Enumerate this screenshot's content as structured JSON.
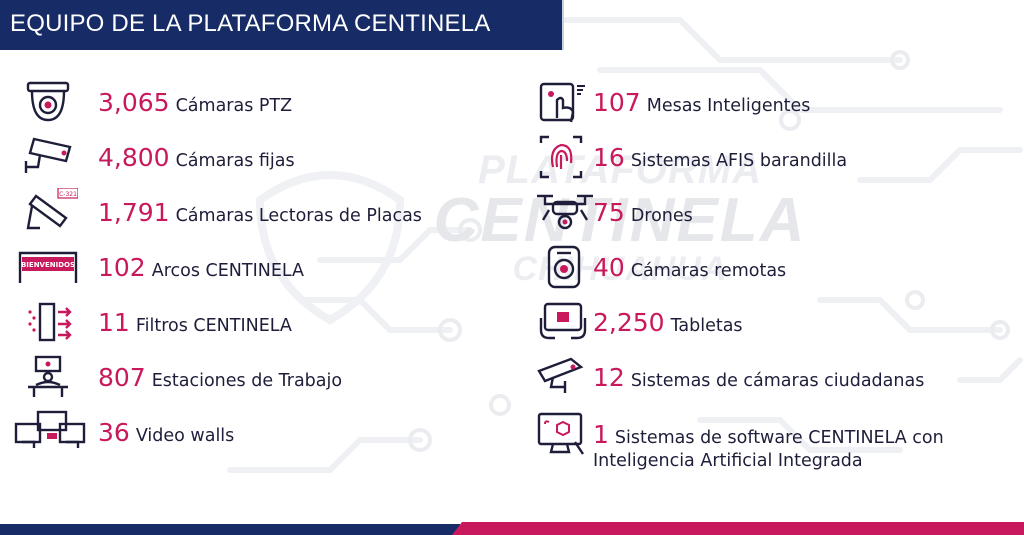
{
  "header": {
    "title": "EQUIPO DE LA PLATAFORMA CENTINELA"
  },
  "watermark": {
    "line1": "PLATAFORMA",
    "line2": "CENTINELA",
    "line3": "CHIHUAHUA"
  },
  "colors": {
    "accent": "#c8195c",
    "navy": "#172c66",
    "text": "#1e1e3a"
  },
  "left_items": [
    {
      "number": "3,065",
      "label": "Cámaras PTZ",
      "icon": "dome-camera-icon"
    },
    {
      "number": "4,800",
      "label": "Cámaras fijas",
      "icon": "fixed-camera-icon"
    },
    {
      "number": "1,791",
      "label": "Cámaras Lectoras de Placas",
      "icon": "plate-reader-camera-icon",
      "icon_text": "C-321"
    },
    {
      "number": "102",
      "label": "Arcos CENTINELA",
      "icon": "arch-sign-icon",
      "icon_text": "BIENVENIDOS"
    },
    {
      "number": "11",
      "label": "Filtros CENTINELA",
      "icon": "filter-gate-icon"
    },
    {
      "number": "807",
      "label": "Estaciones de Trabajo",
      "icon": "workstation-icon"
    },
    {
      "number": "36",
      "label": "Video walls",
      "icon": "video-wall-icon"
    }
  ],
  "right_items": [
    {
      "number": "107",
      "label": "Mesas Inteligentes",
      "icon": "touch-table-icon"
    },
    {
      "number": "16",
      "label": "Sistemas AFIS barandilla",
      "icon": "fingerprint-icon"
    },
    {
      "number": "75",
      "label": "Drones",
      "icon": "drone-icon"
    },
    {
      "number": "40",
      "label": "Cámaras remotas",
      "icon": "remote-camera-icon"
    },
    {
      "number": "2,250",
      "label": "Tabletas",
      "icon": "tablet-icon"
    },
    {
      "number": "12",
      "label": "Sistemas de cámaras ciudadanas",
      "icon": "street-camera-icon"
    },
    {
      "number": "1",
      "label": "Sistemas de software CENTINELA con",
      "label2": "Inteligencia Artificial Integrada",
      "icon": "ai-software-icon"
    }
  ]
}
